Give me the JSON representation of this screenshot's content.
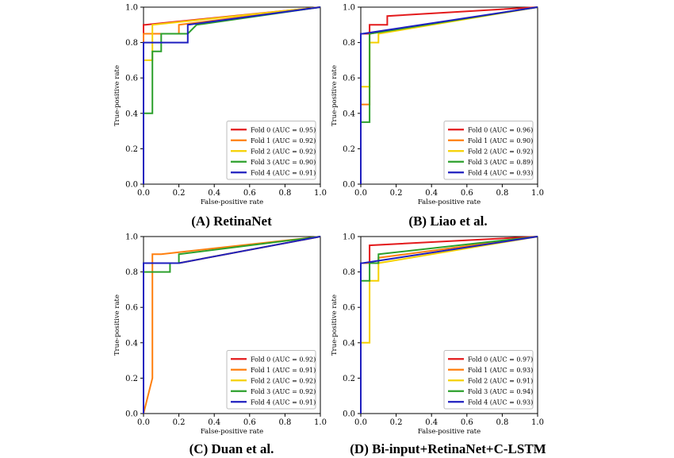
{
  "chart_data": [
    {
      "type": "line",
      "title": "",
      "caption": "(A) RetinaNet",
      "xlabel": "False-positive rate",
      "ylabel": "True-positive rate",
      "xlim": [
        0,
        1
      ],
      "ylim": [
        0,
        1
      ],
      "xticks": [
        "0.0",
        "0.2",
        "0.4",
        "0.6",
        "0.8",
        "1.0"
      ],
      "yticks": [
        "0.0",
        "0.2",
        "0.4",
        "0.6",
        "0.8",
        "1.0"
      ],
      "legend_position": "lower-right",
      "series": [
        {
          "name": "Fold 0 (AUC = 0.95)",
          "color": "#e31a1c",
          "points": [
            [
              0,
              0
            ],
            [
              0,
              0.9
            ],
            [
              0.01,
              0.9
            ],
            [
              1,
              1
            ]
          ]
        },
        {
          "name": "Fold 1 (AUC = 0.92)",
          "color": "#ff7f0e",
          "points": [
            [
              0,
              0
            ],
            [
              0,
              0.85
            ],
            [
              0.2,
              0.85
            ],
            [
              0.2,
              0.9
            ],
            [
              1,
              1
            ]
          ]
        },
        {
          "name": "Fold 2 (AUC = 0.92)",
          "color": "#f5d000",
          "points": [
            [
              0,
              0
            ],
            [
              0,
              0.7
            ],
            [
              0.05,
              0.7
            ],
            [
              0.05,
              0.9
            ],
            [
              1,
              1
            ]
          ]
        },
        {
          "name": "Fold 3 (AUC = 0.90)",
          "color": "#2ca02c",
          "points": [
            [
              0,
              0
            ],
            [
              0,
              0.4
            ],
            [
              0.05,
              0.4
            ],
            [
              0.05,
              0.75
            ],
            [
              0.1,
              0.75
            ],
            [
              0.1,
              0.85
            ],
            [
              0.25,
              0.85
            ],
            [
              0.3,
              0.9
            ],
            [
              1,
              1
            ]
          ]
        },
        {
          "name": "Fold 4 (AUC = 0.91)",
          "color": "#1f1fbf",
          "points": [
            [
              0,
              0
            ],
            [
              0,
              0.8
            ],
            [
              0.25,
              0.8
            ],
            [
              0.25,
              0.9
            ],
            [
              1,
              1
            ]
          ]
        }
      ]
    },
    {
      "type": "line",
      "title": "",
      "caption": "(B) Liao et al.",
      "xlabel": "False-positive rate",
      "ylabel": "True-positive rate",
      "xlim": [
        0,
        1
      ],
      "ylim": [
        0,
        1
      ],
      "xticks": [
        "0.0",
        "0.2",
        "0.4",
        "0.6",
        "0.8",
        "1.0"
      ],
      "yticks": [
        "0.0",
        "0.2",
        "0.4",
        "0.6",
        "0.8",
        "1.0"
      ],
      "legend_position": "lower-right",
      "series": [
        {
          "name": "Fold 0 (AUC = 0.96)",
          "color": "#e31a1c",
          "points": [
            [
              0,
              0
            ],
            [
              0,
              0.85
            ],
            [
              0.05,
              0.85
            ],
            [
              0.05,
              0.9
            ],
            [
              0.15,
              0.9
            ],
            [
              0.15,
              0.95
            ],
            [
              1,
              1
            ]
          ]
        },
        {
          "name": "Fold 1 (AUC = 0.90)",
          "color": "#ff7f0e",
          "points": [
            [
              0,
              0
            ],
            [
              0,
              0.45
            ],
            [
              0.05,
              0.45
            ],
            [
              0.05,
              0.85
            ],
            [
              1,
              1
            ]
          ]
        },
        {
          "name": "Fold 2 (AUC = 0.92)",
          "color": "#f5d000",
          "points": [
            [
              0,
              0
            ],
            [
              0,
              0.55
            ],
            [
              0.05,
              0.55
            ],
            [
              0.05,
              0.8
            ],
            [
              0.1,
              0.8
            ],
            [
              0.1,
              0.85
            ],
            [
              1,
              1
            ]
          ]
        },
        {
          "name": "Fold 3 (AUC = 0.89)",
          "color": "#2ca02c",
          "points": [
            [
              0,
              0
            ],
            [
              0,
              0.35
            ],
            [
              0.05,
              0.35
            ],
            [
              0.05,
              0.85
            ],
            [
              1,
              1
            ]
          ]
        },
        {
          "name": "Fold 4 (AUC = 0.93)",
          "color": "#1f1fbf",
          "points": [
            [
              0,
              0
            ],
            [
              0,
              0.85
            ],
            [
              0.01,
              0.85
            ],
            [
              1,
              1
            ]
          ]
        }
      ]
    },
    {
      "type": "line",
      "title": "",
      "caption": "(C) Duan et al.",
      "xlabel": "False-positive rate",
      "ylabel": "True-positive rate",
      "xlim": [
        0,
        1
      ],
      "ylim": [
        0,
        1
      ],
      "xticks": [
        "0.0",
        "0.2",
        "0.4",
        "0.6",
        "0.8",
        "1.0"
      ],
      "yticks": [
        "0.0",
        "0.2",
        "0.4",
        "0.6",
        "0.8",
        "1.0"
      ],
      "legend_position": "lower-right",
      "series": [
        {
          "name": "Fold 0 (AUC = 0.92)",
          "color": "#e31a1c",
          "points": [
            [
              0,
              0
            ],
            [
              0,
              0.85
            ],
            [
              0.2,
              0.85
            ],
            [
              1,
              1
            ]
          ]
        },
        {
          "name": "Fold 1 (AUC = 0.91)",
          "color": "#ff7f0e",
          "points": [
            [
              0,
              0
            ],
            [
              0.05,
              0.2
            ],
            [
              0.05,
              0.9
            ],
            [
              0.1,
              0.9
            ],
            [
              1,
              1
            ]
          ]
        },
        {
          "name": "Fold 2 (AUC = 0.92)",
          "color": "#f5d000",
          "points": [
            [
              0,
              0
            ],
            [
              0,
              0.85
            ],
            [
              0.2,
              0.85
            ],
            [
              1,
              1
            ]
          ]
        },
        {
          "name": "Fold 3 (AUC = 0.92)",
          "color": "#2ca02c",
          "points": [
            [
              0,
              0
            ],
            [
              0,
              0.8
            ],
            [
              0.15,
              0.8
            ],
            [
              0.15,
              0.85
            ],
            [
              0.2,
              0.85
            ],
            [
              0.2,
              0.9
            ],
            [
              1,
              1
            ]
          ]
        },
        {
          "name": "Fold 4 (AUC = 0.91)",
          "color": "#1f1fbf",
          "points": [
            [
              0,
              0
            ],
            [
              0,
              0.85
            ],
            [
              0.2,
              0.85
            ],
            [
              1,
              1
            ]
          ]
        }
      ]
    },
    {
      "type": "line",
      "title": "",
      "caption": "(D) Bi-input+RetinaNet+C-LSTM",
      "xlabel": "False-positive rate",
      "ylabel": "True-positive rate",
      "xlim": [
        0,
        1
      ],
      "ylim": [
        0,
        1
      ],
      "xticks": [
        "0.0",
        "0.2",
        "0.4",
        "0.6",
        "0.8",
        "1.0"
      ],
      "yticks": [
        "0.0",
        "0.2",
        "0.4",
        "0.6",
        "0.8",
        "1.0"
      ],
      "legend_position": "lower-right",
      "series": [
        {
          "name": "Fold 0 (AUC = 0.97)",
          "color": "#e31a1c",
          "points": [
            [
              0,
              0
            ],
            [
              0,
              0.85
            ],
            [
              0.05,
              0.85
            ],
            [
              0.05,
              0.95
            ],
            [
              1,
              1
            ]
          ]
        },
        {
          "name": "Fold 1 (AUC = 0.93)",
          "color": "#ff7f0e",
          "points": [
            [
              0,
              0
            ],
            [
              0,
              0.85
            ],
            [
              0.1,
              0.85
            ],
            [
              0.1,
              0.88
            ],
            [
              1,
              1
            ]
          ]
        },
        {
          "name": "Fold 2 (AUC = 0.91)",
          "color": "#f5d000",
          "points": [
            [
              0,
              0
            ],
            [
              0,
              0.4
            ],
            [
              0.05,
              0.4
            ],
            [
              0.05,
              0.75
            ],
            [
              0.1,
              0.75
            ],
            [
              0.1,
              0.85
            ],
            [
              1,
              1
            ]
          ]
        },
        {
          "name": "Fold 3 (AUC = 0.94)",
          "color": "#2ca02c",
          "points": [
            [
              0,
              0
            ],
            [
              0,
              0.75
            ],
            [
              0.05,
              0.75
            ],
            [
              0.05,
              0.85
            ],
            [
              0.1,
              0.85
            ],
            [
              0.1,
              0.9
            ],
            [
              1,
              1
            ]
          ]
        },
        {
          "name": "Fold 4 (AUC = 0.93)",
          "color": "#1f1fbf",
          "points": [
            [
              0,
              0
            ],
            [
              0,
              0.85
            ],
            [
              0.01,
              0.85
            ],
            [
              1,
              1
            ]
          ]
        }
      ]
    }
  ]
}
